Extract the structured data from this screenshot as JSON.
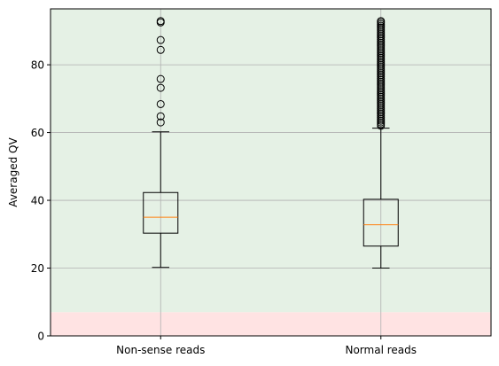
{
  "chart_data": {
    "type": "boxplot",
    "ylabel": "Averaged QV",
    "xlabel": "",
    "title": "",
    "ylim": [
      0,
      96.5
    ],
    "yticks": [
      0,
      20,
      40,
      60,
      80
    ],
    "grid": true,
    "categories": [
      "Non-sense reads",
      "Normal reads"
    ],
    "boxes": [
      {
        "category": "Non-sense reads",
        "whisker_low": 20.2,
        "q1": 30.3,
        "median": 35.0,
        "q3": 42.3,
        "whisker_high": 60.2,
        "outliers": [
          63.0,
          64.8,
          68.4,
          73.2,
          75.8,
          84.4,
          87.3,
          92.5,
          92.9
        ]
      },
      {
        "category": "Normal reads",
        "whisker_low": 20.0,
        "q1": 26.5,
        "median": 32.8,
        "q3": 40.3,
        "whisker_high": 61.3,
        "outliers": [
          62.0,
          62.5,
          63.0,
          63.5,
          64.0,
          64.5,
          65.0,
          65.5,
          66.0,
          66.5,
          67.0,
          67.5,
          68.0,
          68.5,
          69.0,
          69.5,
          70.0,
          70.5,
          71.0,
          71.5,
          72.0,
          72.5,
          73.0,
          73.5,
          74.0,
          74.5,
          75.0,
          75.5,
          76.0,
          76.5,
          77.0,
          77.5,
          78.0,
          78.5,
          79.0,
          79.5,
          80.0,
          80.5,
          81.0,
          81.5,
          82.0,
          82.5,
          83.0,
          83.5,
          84.0,
          84.5,
          85.0,
          85.5,
          86.0,
          86.5,
          87.0,
          87.5,
          88.0,
          88.5,
          89.0,
          89.5,
          90.0,
          90.5,
          91.0,
          91.5,
          92.0,
          92.5,
          92.9
        ]
      }
    ],
    "background_bands": [
      {
        "from": 0,
        "to": 7,
        "color": "#ffe3e3"
      },
      {
        "from": 7,
        "to": 96.5,
        "color": "#e5f1e5"
      }
    ],
    "colors": {
      "median": "#ff7f0e",
      "box": "#000000",
      "grid": "#b0b0b0"
    }
  }
}
